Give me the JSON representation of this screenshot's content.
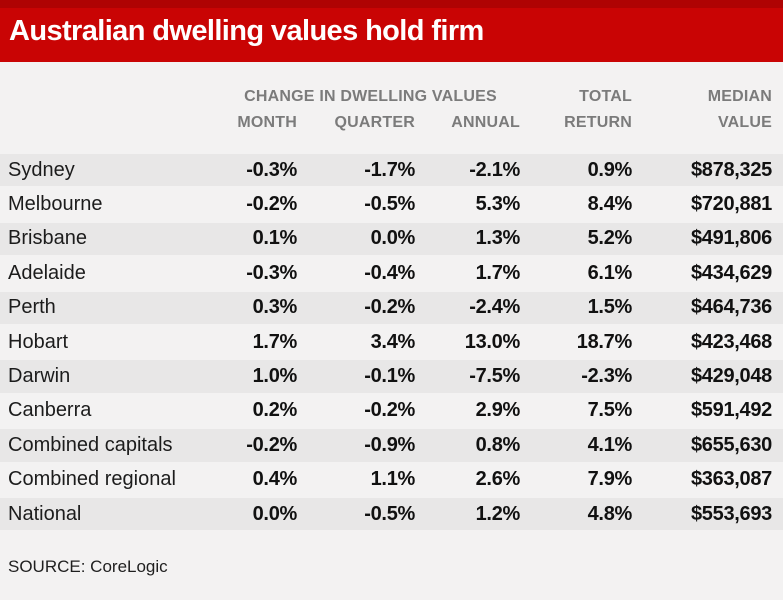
{
  "colors": {
    "banner_red": "#c90404",
    "banner_red_dark": "#af0303",
    "background": "#f3f2f2",
    "row_alt": "#e8e7e7",
    "header_gray": "#7b7b7b",
    "title_color": "#ffffff"
  },
  "chart_data": {
    "type": "table",
    "title": "Australian dwelling values hold firm",
    "group_header": "CHANGE IN DWELLING VALUES",
    "columns": {
      "month": "MONTH",
      "quarter": "QUARTER",
      "annual": "ANNUAL",
      "total_return_line1": "TOTAL",
      "total_return_line2": "RETURN",
      "median_value_line1": "MEDIAN",
      "median_value_line2": "VALUE"
    },
    "rows": [
      {
        "region": "Sydney",
        "month": "-0.3%",
        "quarter": "-1.7%",
        "annual": "-2.1%",
        "total_return": "0.9%",
        "median_value": "$878,325"
      },
      {
        "region": "Melbourne",
        "month": "-0.2%",
        "quarter": "-0.5%",
        "annual": "5.3%",
        "total_return": "8.4%",
        "median_value": "$720,881"
      },
      {
        "region": "Brisbane",
        "month": "0.1%",
        "quarter": "0.0%",
        "annual": "1.3%",
        "total_return": "5.2%",
        "median_value": "$491,806"
      },
      {
        "region": "Adelaide",
        "month": "-0.3%",
        "quarter": "-0.4%",
        "annual": "1.7%",
        "total_return": "6.1%",
        "median_value": "$434,629"
      },
      {
        "region": "Perth",
        "month": "0.3%",
        "quarter": "-0.2%",
        "annual": "-2.4%",
        "total_return": "1.5%",
        "median_value": "$464,736"
      },
      {
        "region": "Hobart",
        "month": "1.7%",
        "quarter": "3.4%",
        "annual": "13.0%",
        "total_return": "18.7%",
        "median_value": "$423,468"
      },
      {
        "region": "Darwin",
        "month": "1.0%",
        "quarter": "-0.1%",
        "annual": "-7.5%",
        "total_return": "-2.3%",
        "median_value": "$429,048"
      },
      {
        "region": "Canberra",
        "month": "0.2%",
        "quarter": "-0.2%",
        "annual": "2.9%",
        "total_return": "7.5%",
        "median_value": "$591,492"
      },
      {
        "region": "Combined capitals",
        "month": "-0.2%",
        "quarter": "-0.9%",
        "annual": "0.8%",
        "total_return": "4.1%",
        "median_value": "$655,630"
      },
      {
        "region": "Combined regional",
        "month": "0.4%",
        "quarter": "1.1%",
        "annual": "2.6%",
        "total_return": "7.9%",
        "median_value": "$363,087"
      },
      {
        "region": "National",
        "month": "0.0%",
        "quarter": "-0.5%",
        "annual": "1.2%",
        "total_return": "4.8%",
        "median_value": "$553,693"
      }
    ],
    "source": "SOURCE: CoreLogic"
  }
}
